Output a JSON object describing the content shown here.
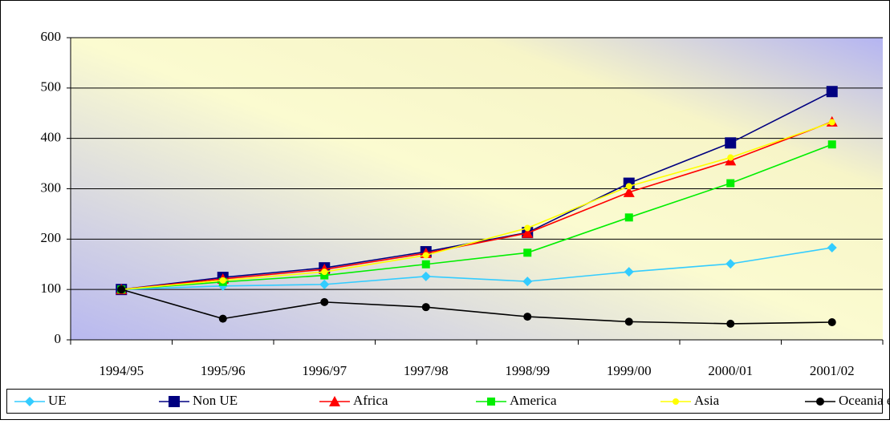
{
  "chart_data": {
    "type": "line",
    "categories": [
      "1994/95",
      "1995/96",
      "1996/97",
      "1997/98",
      "1998/99",
      "1999/00",
      "2000/01",
      "2001/02"
    ],
    "series": [
      {
        "name": "UE",
        "color": "#33ccff",
        "marker": "diamond",
        "values": [
          100,
          107,
          110,
          126,
          116,
          135,
          151,
          183
        ]
      },
      {
        "name": "Non UE",
        "color": "#000080",
        "marker": "square",
        "values": [
          100,
          124,
          143,
          175,
          213,
          311,
          391,
          493
        ]
      },
      {
        "name": "Africa",
        "color": "#ff0000",
        "marker": "triangle",
        "values": [
          100,
          121,
          140,
          172,
          212,
          293,
          356,
          433
        ]
      },
      {
        "name": "America",
        "color": "#00ee00",
        "marker": "square-small",
        "values": [
          100,
          115,
          128,
          150,
          173,
          243,
          311,
          388
        ]
      },
      {
        "name": "Asia",
        "color": "#ffff00",
        "marker": "circle-small",
        "values": [
          100,
          118,
          135,
          168,
          222,
          305,
          362,
          432
        ]
      },
      {
        "name": "Oceania e apolidi",
        "color": "#000000",
        "marker": "circle",
        "values": [
          100,
          42,
          75,
          65,
          46,
          36,
          32,
          35
        ]
      }
    ],
    "ylim": [
      0,
      600
    ],
    "yticks": [
      0,
      100,
      200,
      300,
      400,
      500,
      600
    ],
    "grid": true,
    "legend": "bottom"
  }
}
